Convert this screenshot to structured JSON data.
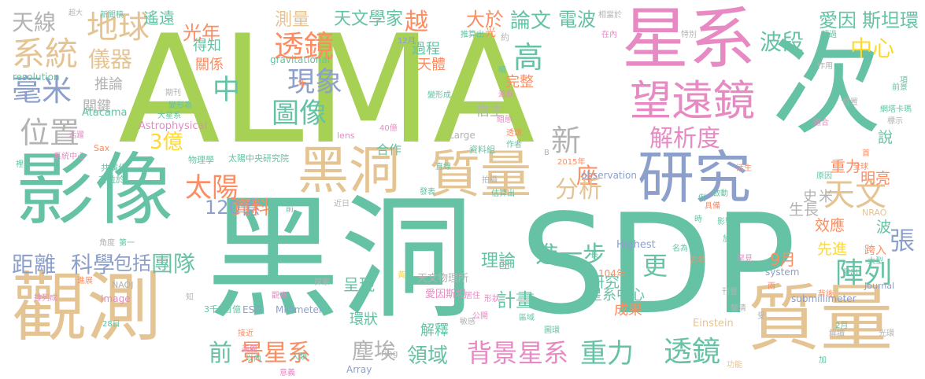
{
  "palette": {
    "green": "#a6d154",
    "teal": "#66c2a5",
    "pink": "#e78ac3",
    "tan": "#e5c494",
    "orange": "#fc8d62",
    "blue": "#8da0cb",
    "gray": "#b3b3b3",
    "yellow": "#ffd92f"
  },
  "words": [
    {
      "text": "ALMA",
      "color": "green"
    },
    {
      "text": "黑洞",
      "color": "teal"
    },
    {
      "text": "SDP",
      "color": "teal"
    },
    {
      "text": "影像",
      "color": "teal"
    },
    {
      "text": "觀測",
      "color": "tan"
    },
    {
      "text": "星系",
      "color": "pink"
    },
    {
      "text": "次",
      "color": "teal"
    },
    {
      "text": "質量",
      "color": "tan"
    },
    {
      "text": "研究",
      "color": "blue"
    },
    {
      "text": "黑洞",
      "color": "tan"
    },
    {
      "text": "質量",
      "color": "tan"
    },
    {
      "text": "望遠鏡",
      "color": "pink"
    },
    {
      "text": "地球",
      "color": "tan"
    },
    {
      "text": "系統",
      "color": "tan"
    },
    {
      "text": "天線",
      "color": "gray"
    },
    {
      "text": "毫米",
      "color": "blue"
    },
    {
      "text": "位置",
      "color": "gray"
    },
    {
      "text": "透鏡",
      "color": "orange"
    },
    {
      "text": "現象",
      "color": "blue"
    },
    {
      "text": "圖像",
      "color": "teal"
    },
    {
      "text": "解析度",
      "color": "pink"
    },
    {
      "text": "中心",
      "color": "yellow"
    },
    {
      "text": "波段",
      "color": "teal"
    },
    {
      "text": "愛因",
      "color": "teal"
    },
    {
      "text": "斯坦環",
      "color": "teal"
    },
    {
      "text": "儀器",
      "color": "tan"
    },
    {
      "text": "光年",
      "color": "orange"
    },
    {
      "text": "中",
      "color": "teal"
    },
    {
      "text": "高",
      "color": "teal"
    },
    {
      "text": "新",
      "color": "gray"
    },
    {
      "text": "座",
      "color": "orange"
    },
    {
      "text": "越",
      "color": "orange"
    },
    {
      "text": "論文",
      "color": "teal"
    },
    {
      "text": "電波",
      "color": "teal"
    },
    {
      "text": "大於",
      "color": "orange"
    },
    {
      "text": "天文學家",
      "color": "teal"
    },
    {
      "text": "測量",
      "color": "tan"
    },
    {
      "text": "遙遠",
      "color": "teal"
    },
    {
      "text": "天文",
      "color": "tan"
    },
    {
      "text": "太陽",
      "color": "orange"
    },
    {
      "text": "3億",
      "color": "yellow"
    },
    {
      "text": "120億",
      "color": "blue"
    },
    {
      "text": "資料",
      "color": "orange"
    },
    {
      "text": "分析",
      "color": "tan"
    },
    {
      "text": "距離",
      "color": "blue"
    },
    {
      "text": "科學",
      "color": "blue"
    },
    {
      "text": "包括",
      "color": "blue"
    },
    {
      "text": "團隊",
      "color": "teal"
    },
    {
      "text": "前",
      "color": "teal"
    },
    {
      "text": "景星系",
      "color": "orange"
    },
    {
      "text": "塵埃",
      "color": "gray"
    },
    {
      "text": "領域",
      "color": "teal"
    },
    {
      "text": "背景",
      "color": "pink"
    },
    {
      "text": "星系",
      "color": "pink"
    },
    {
      "text": "重力",
      "color": "teal"
    },
    {
      "text": "透鏡",
      "color": "teal"
    },
    {
      "text": "陣列",
      "color": "teal"
    },
    {
      "text": "張",
      "color": "blue"
    },
    {
      "text": "更",
      "color": "teal"
    },
    {
      "text": "進一步",
      "color": "teal"
    },
    {
      "text": "計畫",
      "color": "teal"
    },
    {
      "text": "9月",
      "color": "orange"
    },
    {
      "text": "理論",
      "color": "teal"
    },
    {
      "text": "研究員",
      "color": "teal"
    },
    {
      "text": "呈現",
      "color": "teal"
    },
    {
      "text": "先進",
      "color": "yellow"
    },
    {
      "text": "效應",
      "color": "orange"
    },
    {
      "text": "生長",
      "color": "gray"
    },
    {
      "text": "史",
      "color": "gray"
    },
    {
      "text": "米",
      "color": "gray"
    },
    {
      "text": "明亮",
      "color": "orange"
    },
    {
      "text": "重力",
      "color": "orange"
    },
    {
      "text": "說",
      "color": "teal"
    },
    {
      "text": "宿主",
      "color": "gray"
    },
    {
      "text": "完整",
      "color": "orange"
    },
    {
      "text": "天體",
      "color": "orange"
    },
    {
      "text": "過程",
      "color": "teal"
    },
    {
      "text": "得知",
      "color": "teal"
    },
    {
      "text": "關係",
      "color": "orange"
    },
    {
      "text": "推論",
      "color": "gray"
    },
    {
      "text": "關鍵",
      "color": "gray"
    },
    {
      "text": "環狀",
      "color": "teal"
    },
    {
      "text": "成果",
      "color": "orange"
    },
    {
      "text": "星系中心",
      "color": "teal"
    },
    {
      "text": "解釋",
      "color": "teal"
    },
    {
      "text": "合作",
      "color": "teal"
    },
    {
      "text": "天文物理所",
      "color": "gray"
    },
    {
      "text": "愛因斯坦",
      "color": "pink"
    },
    {
      "text": "太陽中央研究院",
      "color": "teal"
    },
    {
      "text": "Highest",
      "color": "blue"
    },
    {
      "text": "Millimeter",
      "color": "blue"
    },
    {
      "text": "ESO",
      "color": "blue"
    },
    {
      "text": "3千5百億",
      "color": "teal"
    },
    {
      "text": "104年",
      "color": "orange"
    },
    {
      "text": "system",
      "color": "blue"
    },
    {
      "text": "submillimeter",
      "color": "blue"
    },
    {
      "text": "Astrophysical",
      "color": "pink"
    },
    {
      "text": "Image",
      "color": "pink"
    },
    {
      "text": "Atacama",
      "color": "teal"
    },
    {
      "text": "resolution",
      "color": "teal"
    },
    {
      "text": "gravitational",
      "color": "teal"
    },
    {
      "text": "observation",
      "color": "blue"
    },
    {
      "text": "Large",
      "color": "gray"
    },
    {
      "text": "Array",
      "color": "blue"
    },
    {
      "text": "Einstein",
      "color": "tan"
    },
    {
      "text": "Journal",
      "color": "blue"
    },
    {
      "text": "NRAO",
      "color": "tan"
    },
    {
      "text": "NAOJ",
      "color": "gray"
    },
    {
      "text": "lens",
      "color": "pink"
    },
    {
      "text": "Sax",
      "color": "orange"
    },
    {
      "text": "ring",
      "color": "gray"
    },
    {
      "text": "2015年",
      "color": "orange"
    },
    {
      "text": "資料組",
      "color": "teal"
    },
    {
      "text": "光環",
      "color": "gray"
    },
    {
      "text": "大型",
      "color": "teal"
    },
    {
      "text": "共演化",
      "color": "teal"
    },
    {
      "text": "有益於",
      "color": "teal"
    },
    {
      "text": "角度",
      "color": "gray"
    },
    {
      "text": "第一",
      "color": "teal"
    },
    {
      "text": "物理學",
      "color": "teal"
    },
    {
      "text": "跨入",
      "color": "orange"
    },
    {
      "text": "波",
      "color": "teal"
    },
    {
      "text": "期刊",
      "color": "gray"
    },
    {
      "text": "變形為",
      "color": "teal"
    },
    {
      "text": "變形成",
      "color": "teal"
    },
    {
      "text": "大星系",
      "color": "teal"
    },
    {
      "text": "年",
      "color": "orange"
    },
    {
      "text": "光",
      "color": "orange"
    },
    {
      "text": "12月",
      "color": "blue"
    },
    {
      "text": "40億",
      "color": "pink"
    },
    {
      "text": "推算出",
      "color": "teal"
    },
    {
      "text": "相當於",
      "color": "gray"
    },
    {
      "text": "新聞稿",
      "color": "teal"
    },
    {
      "text": "超大",
      "color": "gray"
    },
    {
      "text": "特別",
      "color": "gray"
    },
    {
      "text": "超過",
      "color": "teal"
    },
    {
      "text": "作用",
      "color": "gray"
    },
    {
      "text": "在內",
      "color": "pink"
    },
    {
      "text": "約",
      "color": "gray"
    },
    {
      "text": "前景",
      "color": "teal"
    },
    {
      "text": "網塔卡瑪",
      "color": "teal"
    },
    {
      "text": "標示",
      "color": "gray"
    },
    {
      "text": "適合",
      "color": "pink"
    },
    {
      "text": "全球",
      "color": "orange"
    },
    {
      "text": "原因",
      "color": "teal"
    },
    {
      "text": "活躍",
      "color": "pink"
    },
    {
      "text": "系統中心",
      "color": "pink"
    },
    {
      "text": "排列成",
      "color": "pink"
    },
    {
      "text": "進展",
      "color": "orange"
    },
    {
      "text": "接近",
      "color": "orange"
    },
    {
      "text": "美麗",
      "color": "pink"
    },
    {
      "text": "人類",
      "color": "teal"
    },
    {
      "text": "意義",
      "color": "pink"
    },
    {
      "text": "觀察",
      "color": "pink"
    },
    {
      "text": "居住",
      "color": "pink"
    },
    {
      "text": "公開",
      "color": "pink"
    },
    {
      "text": "區域",
      "color": "teal"
    },
    {
      "text": "圖環",
      "color": "teal"
    },
    {
      "text": "估算出",
      "color": "teal"
    },
    {
      "text": "拍攝",
      "color": "gray"
    },
    {
      "text": "直線",
      "color": "teal"
    },
    {
      "text": "發表",
      "color": "teal"
    },
    {
      "text": "探索",
      "color": "gray"
    },
    {
      "text": "近日",
      "color": "gray"
    },
    {
      "text": "以內",
      "color": "teal"
    },
    {
      "text": "功能",
      "color": "tan"
    },
    {
      "text": "解讀",
      "color": "gray"
    },
    {
      "text": "釐清",
      "color": "gray"
    },
    {
      "text": "刊登",
      "color": "gray"
    },
    {
      "text": "發出",
      "color": "teal"
    },
    {
      "text": "罕見",
      "color": "pink"
    },
    {
      "text": "去年",
      "color": "orange"
    },
    {
      "text": "名為",
      "color": "teal"
    },
    {
      "text": "放大",
      "color": "teal"
    },
    {
      "text": "影響",
      "color": "teal"
    },
    {
      "text": "具備",
      "color": "orange"
    },
    {
      "text": "啟動",
      "color": "teal"
    },
    {
      "text": "例",
      "color": "teal"
    },
    {
      "text": "時",
      "color": "teal"
    },
    {
      "text": "形狀",
      "color": "pink"
    },
    {
      "text": "28日",
      "color": "teal"
    },
    {
      "text": "2月",
      "color": "teal"
    },
    {
      "text": "敏感",
      "color": "gray"
    },
    {
      "text": "作者",
      "color": "teal"
    },
    {
      "text": "透鏡",
      "color": "orange"
    },
    {
      "text": "組態",
      "color": "pink"
    },
    {
      "text": "遮蔽",
      "color": "pink"
    },
    {
      "text": "暗",
      "color": "teal"
    },
    {
      "text": "隨",
      "color": "teal"
    },
    {
      "text": "熱",
      "color": "teal"
    },
    {
      "text": "項",
      "color": "teal"
    },
    {
      "text": "位置",
      "color": "gray"
    },
    {
      "text": "活生",
      "color": "orange"
    },
    {
      "text": "首",
      "color": "orange"
    },
    {
      "text": "知",
      "color": "gray"
    },
    {
      "text": "裡",
      "color": "teal"
    },
    {
      "text": "前",
      "color": "teal"
    },
    {
      "text": "長",
      "color": "teal"
    },
    {
      "text": "三",
      "color": "gray"
    },
    {
      "text": "兩",
      "color": "orange"
    },
    {
      "text": "加",
      "color": "teal"
    },
    {
      "text": "受",
      "color": "gray"
    },
    {
      "text": "背後",
      "color": "orange"
    },
    {
      "text": "B",
      "color": "gray"
    },
    {
      "text": "黃",
      "color": "yellow"
    }
  ]
}
